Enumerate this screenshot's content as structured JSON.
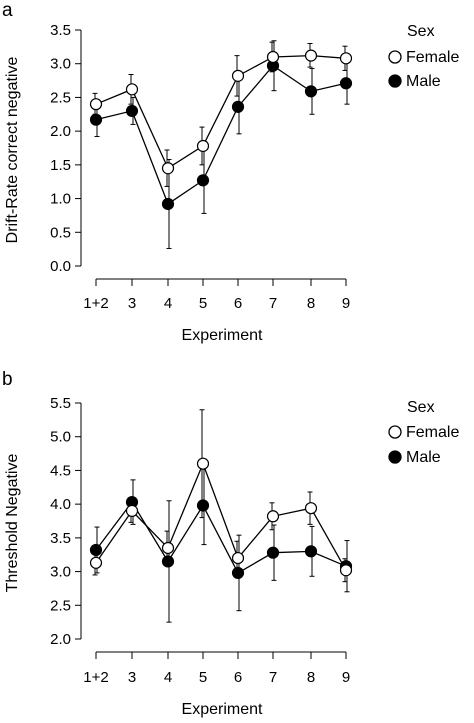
{
  "chart_data": [
    {
      "panel_label": "a",
      "type": "line",
      "xlabel": "Experiment",
      "ylabel": "Drift-Rate correct negative",
      "categories": [
        "1+2",
        "3",
        "4",
        "5",
        "6",
        "7",
        "8",
        "9"
      ],
      "ylim": [
        0.0,
        3.5
      ],
      "yticks": [
        "0.0",
        "0.5",
        "1.0",
        "1.5",
        "2.0",
        "2.5",
        "3.0",
        "3.5"
      ],
      "legend": {
        "title": "Sex",
        "placement": "right"
      },
      "series": [
        {
          "name": "Female",
          "marker": "open-circle",
          "values": [
            2.4,
            2.62,
            1.45,
            1.78,
            2.82,
            3.1,
            3.12,
            3.08
          ],
          "err_low": [
            2.25,
            2.4,
            1.18,
            1.5,
            2.52,
            2.88,
            2.95,
            2.9
          ],
          "err_high": [
            2.56,
            2.84,
            1.72,
            2.06,
            3.12,
            3.32,
            3.3,
            3.26
          ]
        },
        {
          "name": "Male",
          "marker": "filled-circle",
          "values": [
            2.17,
            2.3,
            0.92,
            1.27,
            2.36,
            2.97,
            2.59,
            2.71
          ],
          "err_low": [
            1.92,
            2.1,
            0.26,
            0.78,
            1.96,
            2.6,
            2.25,
            2.4
          ],
          "err_high": [
            2.42,
            2.5,
            1.58,
            1.76,
            2.76,
            3.34,
            2.93,
            3.02
          ]
        }
      ]
    },
    {
      "panel_label": "b",
      "type": "line",
      "xlabel": "Experiment",
      "ylabel": "Threshold Negative",
      "categories": [
        "1+2",
        "3",
        "4",
        "5",
        "6",
        "7",
        "8",
        "9"
      ],
      "ylim": [
        2.0,
        5.5
      ],
      "yticks": [
        "2.0",
        "2.5",
        "3.0",
        "3.5",
        "4.0",
        "4.5",
        "5.0",
        "5.5"
      ],
      "legend": {
        "title": "Sex",
        "placement": "right"
      },
      "series": [
        {
          "name": "Female",
          "marker": "open-circle",
          "values": [
            3.13,
            3.9,
            3.35,
            4.6,
            3.2,
            3.82,
            3.94,
            3.02
          ],
          "err_low": [
            2.95,
            3.73,
            3.1,
            3.8,
            2.95,
            3.62,
            3.7,
            2.85
          ],
          "err_high": [
            3.31,
            4.07,
            3.6,
            5.4,
            3.45,
            4.02,
            4.18,
            3.19
          ]
        },
        {
          "name": "Male",
          "marker": "filled-circle",
          "values": [
            3.32,
            4.03,
            3.15,
            3.98,
            2.98,
            3.28,
            3.3,
            3.08
          ],
          "err_low": [
            2.98,
            3.7,
            2.25,
            3.4,
            2.42,
            2.87,
            2.93,
            2.7
          ],
          "err_high": [
            3.66,
            4.36,
            4.05,
            4.56,
            3.54,
            3.69,
            3.67,
            3.46
          ]
        }
      ]
    }
  ]
}
